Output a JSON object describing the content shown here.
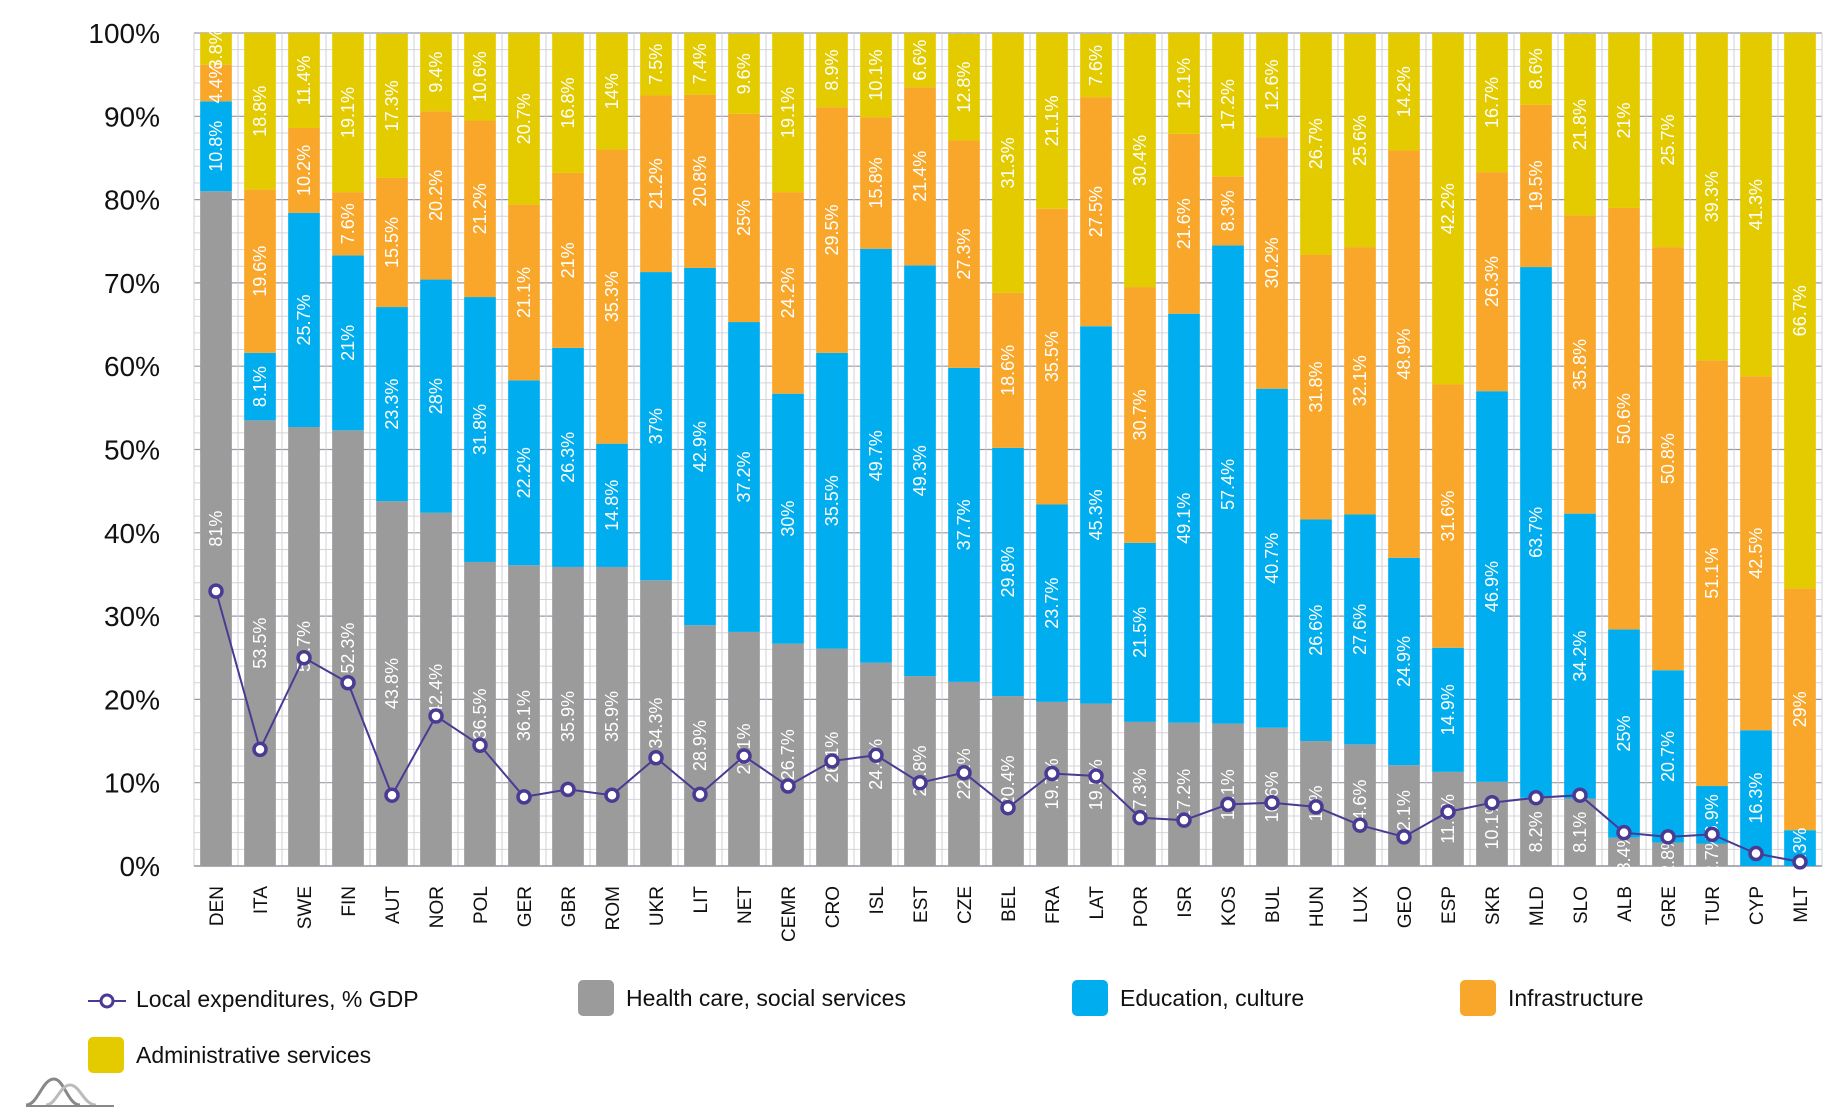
{
  "chart_data": {
    "type": "bar",
    "stacked": true,
    "title": "",
    "xlabel": "",
    "ylabel": "",
    "ylim": [
      0,
      100
    ],
    "yticks": [
      "0%",
      "10%",
      "20%",
      "30%",
      "40%",
      "50%",
      "60%",
      "70%",
      "80%",
      "90%",
      "100%"
    ],
    "grid": true,
    "legend_position": "bottom",
    "categories": [
      "DEN",
      "ITA",
      "SWE",
      "FIN",
      "AUT",
      "NOR",
      "POL",
      "GER",
      "GBR",
      "ROM",
      "UKR",
      "LIT",
      "NET",
      "CEMR",
      "CRO",
      "ISL",
      "EST",
      "CZE",
      "BEL",
      "FRA",
      "LAT",
      "POR",
      "ISR",
      "KOS",
      "BUL",
      "HUN",
      "LUX",
      "GEO",
      "ESP",
      "SKR",
      "MLD",
      "SLO",
      "ALB",
      "GRE",
      "TUR",
      "CYP",
      "MLT"
    ],
    "series": [
      {
        "name": "Health care, social services",
        "color": "#9b9b9b",
        "values": [
          81,
          53.5,
          52.7,
          52.3,
          43.8,
          42.4,
          36.5,
          36.1,
          35.9,
          35.9,
          34.3,
          28.9,
          28.1,
          26.7,
          26.1,
          24.4,
          22.8,
          22.1,
          20.4,
          19.7,
          19.5,
          17.3,
          17.2,
          17.1,
          16.6,
          15,
          14.6,
          12.1,
          11.3,
          10.1,
          8.2,
          8.1,
          3.4,
          2.8,
          2.7,
          0,
          0
        ]
      },
      {
        "name": "Education, culture",
        "color": "#00aeef",
        "values": [
          10.8,
          8.1,
          25.7,
          21,
          23.3,
          28,
          31.8,
          22.2,
          26.3,
          14.8,
          37,
          42.9,
          37.2,
          30,
          35.5,
          49.7,
          49.3,
          37.7,
          29.8,
          23.7,
          45.3,
          21.5,
          49.1,
          57.4,
          40.7,
          26.6,
          27.6,
          24.9,
          14.9,
          46.9,
          63.7,
          34.2,
          25,
          20.7,
          6.9,
          16.3,
          4.3
        ]
      },
      {
        "name": "Infrastructure",
        "color": "#f9a72b",
        "values": [
          4.4,
          19.6,
          10.2,
          7.6,
          15.5,
          20.2,
          21.2,
          21.1,
          21,
          35.3,
          21.2,
          20.8,
          25,
          24.2,
          29.5,
          15.8,
          21.4,
          27.3,
          18.6,
          35.5,
          27.5,
          30.7,
          21.6,
          8.3,
          30.2,
          31.8,
          32.1,
          48.9,
          31.6,
          26.3,
          19.5,
          35.8,
          50.6,
          50.8,
          51.1,
          42.5,
          29
        ]
      },
      {
        "name": "Administrative services",
        "color": "#e3cb00",
        "values": [
          3.8,
          18.8,
          11.4,
          19.1,
          17.3,
          9.4,
          10.6,
          20.7,
          16.8,
          14,
          7.5,
          7.4,
          9.6,
          19.1,
          8.9,
          10.1,
          6.6,
          12.8,
          31.3,
          21.1,
          7.6,
          30.4,
          12.1,
          17.2,
          12.6,
          26.7,
          25.6,
          14.2,
          42.2,
          16.7,
          8.6,
          21.8,
          21,
          25.7,
          39.3,
          41.3,
          66.7
        ]
      }
    ],
    "line": {
      "name": "Local expenditures, % GDP",
      "color": "#4b3a93",
      "values": [
        33,
        14,
        25,
        22,
        8.5,
        18,
        14.5,
        8.3,
        9.2,
        8.5,
        13,
        8.6,
        13.2,
        9.6,
        12.6,
        13.3,
        10,
        11.2,
        7,
        11.1,
        10.8,
        5.8,
        5.5,
        7.4,
        7.6,
        7.1,
        4.9,
        3.5,
        6.5,
        7.6,
        8.2,
        8.5,
        4,
        3.5,
        3.8,
        1.5,
        0.5
      ]
    }
  },
  "legend": {
    "line_label": "Local expenditures, % GDP",
    "health_label": "Health care, social services",
    "education_label": "Education, culture",
    "infrastructure_label": "Infrastructure",
    "admin_label": "Administrative services"
  },
  "colors": {
    "health": "#9b9b9b",
    "education": "#00aeef",
    "infrastructure": "#f9a72b",
    "admin": "#e3cb00",
    "line": "#4b3a93"
  },
  "logo": {
    "icon": "mountain-peaks-logo-icon"
  }
}
